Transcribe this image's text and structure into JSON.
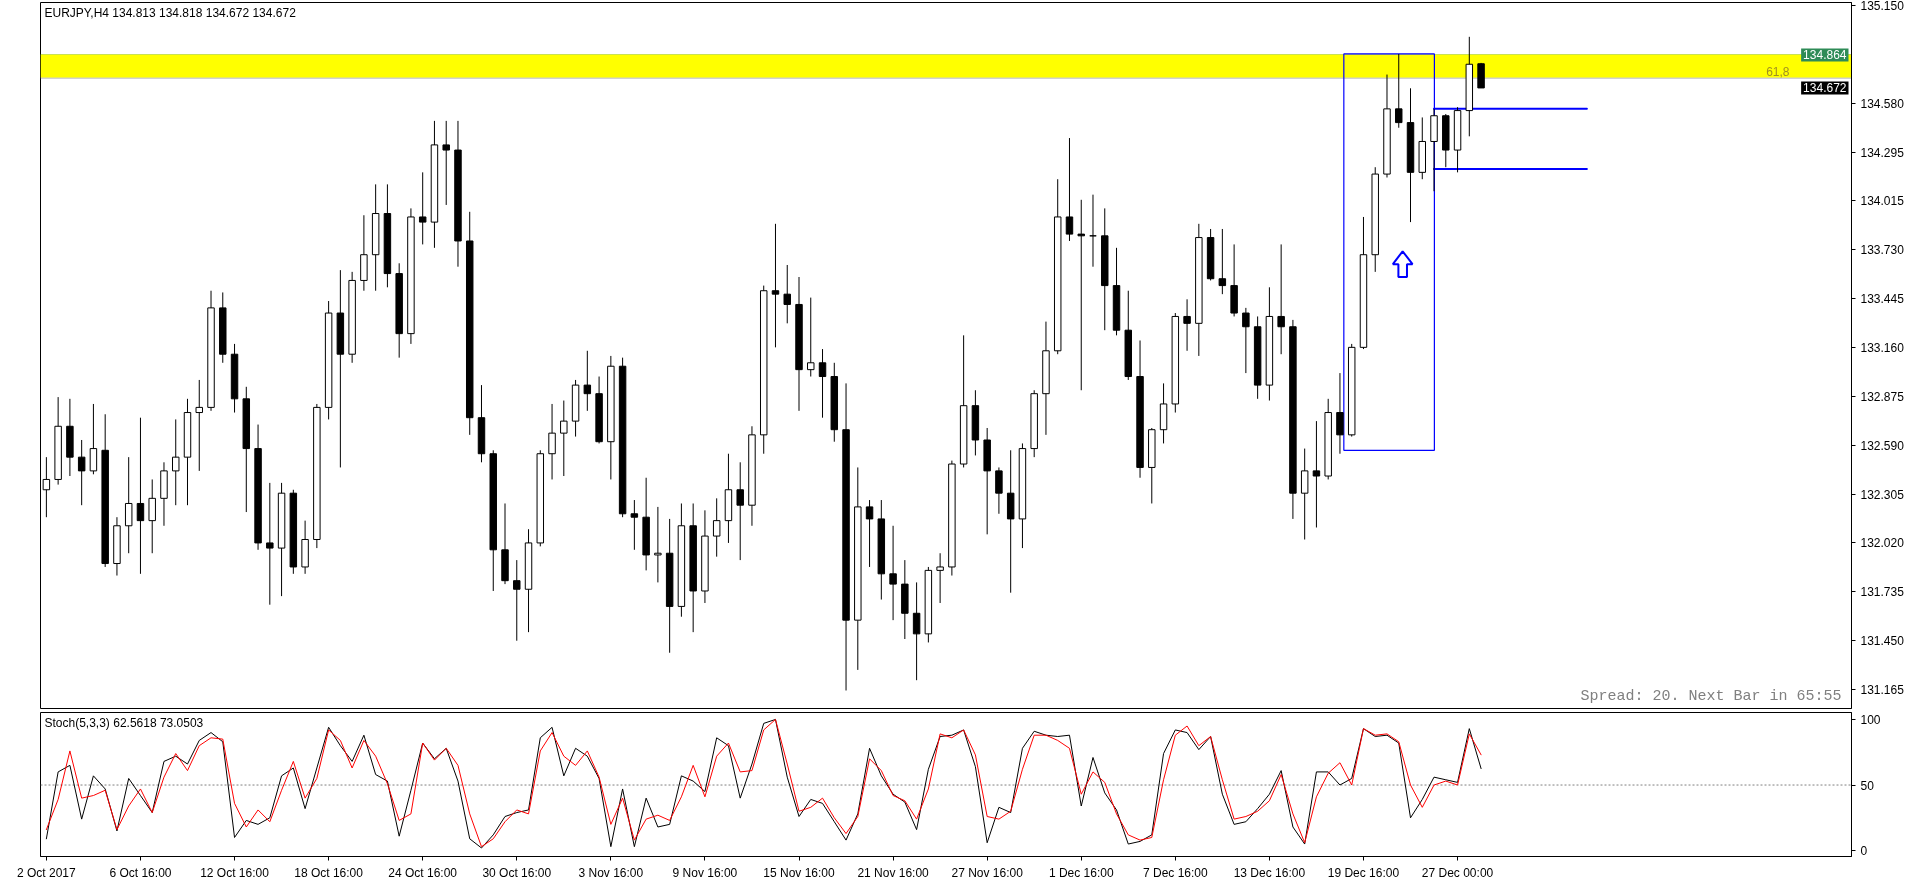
{
  "chart_data": [
    {
      "type": "candlestick",
      "title": "EURJPY,H4 134.813 134.818 134.672 134.672",
      "color": "#000000",
      "categories": [
        null,
        null,
        null,
        null,
        null,
        null,
        null,
        null,
        null,
        null,
        null,
        null,
        null,
        null,
        null,
        null,
        null,
        null,
        null,
        null,
        null,
        null,
        null,
        null,
        null,
        null,
        null,
        null,
        null,
        null,
        null,
        null,
        null,
        null,
        null,
        null,
        null,
        null,
        null,
        null,
        null,
        null,
        null,
        null,
        null,
        null,
        null,
        null,
        null,
        null,
        null,
        null,
        null,
        null,
        null,
        null,
        null,
        null,
        null,
        null,
        null,
        null,
        null,
        null,
        null,
        null,
        null,
        null,
        null,
        null,
        null,
        null,
        null,
        null,
        null,
        null,
        null,
        null,
        null,
        null,
        null,
        null,
        null,
        null,
        null,
        null,
        null,
        null,
        null,
        null,
        null,
        null,
        null,
        null,
        null,
        null,
        null,
        null,
        null,
        null,
        null,
        null,
        null,
        null,
        null,
        null,
        null,
        null,
        null,
        null,
        null,
        null,
        null,
        null,
        null,
        null,
        null,
        null,
        null,
        null,
        null,
        null,
        null,
        null,
        null,
        null,
        null,
        null,
        null,
        null,
        null,
        null,
        null,
        null,
        null,
        null,
        null,
        null,
        null,
        null,
        null,
        null,
        null,
        null,
        null,
        null,
        null,
        null,
        null,
        null,
        null,
        null,
        null,
        null
      ],
      "ohlc": [
        [
          132.33,
          132.52,
          132.17,
          132.39
        ],
        [
          132.39,
          132.87,
          132.36,
          132.7
        ],
        [
          132.7,
          132.86,
          132.41,
          132.52
        ],
        [
          132.52,
          132.62,
          132.24,
          132.44
        ],
        [
          132.44,
          132.83,
          132.42,
          132.57
        ],
        [
          132.56,
          132.77,
          131.88,
          131.9
        ],
        [
          131.9,
          132.17,
          131.83,
          132.12
        ],
        [
          132.12,
          132.52,
          131.96,
          132.25
        ],
        [
          132.25,
          132.75,
          131.84,
          132.15
        ],
        [
          132.15,
          132.39,
          131.96,
          132.28
        ],
        [
          132.28,
          132.49,
          132.12,
          132.44
        ],
        [
          132.44,
          132.74,
          132.24,
          132.52
        ],
        [
          132.52,
          132.86,
          132.24,
          132.78
        ],
        [
          132.78,
          132.97,
          132.44,
          132.81
        ],
        [
          132.81,
          133.49,
          132.79,
          133.39
        ],
        [
          133.39,
          133.48,
          133.07,
          133.12
        ],
        [
          133.12,
          133.18,
          132.78,
          132.86
        ],
        [
          132.86,
          132.93,
          132.2,
          132.57
        ],
        [
          132.57,
          132.71,
          131.98,
          132.02
        ],
        [
          132.02,
          132.37,
          131.66,
          131.99
        ],
        [
          131.99,
          132.37,
          131.71,
          132.31
        ],
        [
          132.31,
          132.33,
          131.84,
          131.88
        ],
        [
          131.88,
          132.15,
          131.84,
          132.04
        ],
        [
          132.04,
          132.83,
          131.99,
          132.81
        ],
        [
          132.81,
          133.43,
          132.74,
          133.36
        ],
        [
          133.36,
          133.61,
          132.46,
          133.12
        ],
        [
          133.12,
          133.6,
          133.07,
          133.55
        ],
        [
          133.55,
          133.93,
          133.49,
          133.7
        ],
        [
          133.7,
          134.11,
          133.49,
          133.94
        ],
        [
          133.94,
          134.11,
          133.51,
          133.59
        ],
        [
          133.59,
          133.65,
          133.1,
          133.24
        ],
        [
          133.24,
          133.97,
          133.18,
          133.92
        ],
        [
          133.92,
          134.18,
          133.76,
          133.89
        ],
        [
          133.89,
          134.48,
          133.74,
          134.34
        ],
        [
          134.34,
          134.48,
          133.99,
          134.31
        ],
        [
          134.31,
          134.48,
          133.63,
          133.78
        ],
        [
          133.78,
          133.95,
          132.65,
          132.75
        ],
        [
          132.75,
          132.94,
          132.49,
          132.54
        ],
        [
          132.54,
          132.56,
          131.74,
          131.98
        ],
        [
          131.98,
          132.25,
          131.78,
          131.8
        ],
        [
          131.8,
          131.92,
          131.45,
          131.75
        ],
        [
          131.75,
          132.1,
          131.5,
          132.02
        ],
        [
          132.02,
          132.56,
          132.0,
          132.54
        ],
        [
          132.54,
          132.83,
          132.39,
          132.66
        ],
        [
          132.66,
          132.85,
          132.41,
          132.73
        ],
        [
          132.73,
          132.97,
          132.64,
          132.94
        ],
        [
          132.94,
          133.14,
          132.79,
          132.89
        ],
        [
          132.89,
          132.99,
          132.6,
          132.61
        ],
        [
          132.61,
          133.11,
          132.39,
          133.05
        ],
        [
          133.05,
          133.1,
          132.17,
          132.19
        ],
        [
          132.19,
          132.27,
          131.98,
          132.17
        ],
        [
          132.17,
          132.4,
          131.86,
          131.95
        ],
        [
          131.95,
          132.23,
          131.79,
          131.96
        ],
        [
          131.96,
          132.16,
          131.38,
          131.65
        ],
        [
          131.65,
          132.25,
          131.59,
          132.12
        ],
        [
          132.12,
          132.25,
          131.5,
          131.74
        ],
        [
          131.74,
          132.21,
          131.67,
          132.06
        ],
        [
          132.06,
          132.28,
          131.94,
          132.15
        ],
        [
          132.15,
          132.54,
          132.02,
          132.33
        ],
        [
          132.33,
          132.49,
          131.92,
          132.24
        ],
        [
          132.24,
          132.7,
          132.12,
          132.65
        ],
        [
          132.65,
          133.52,
          132.54,
          133.49
        ],
        [
          133.49,
          133.88,
          133.16,
          133.47
        ],
        [
          133.47,
          133.64,
          133.3,
          133.41
        ],
        [
          133.41,
          133.57,
          132.79,
          133.03
        ],
        [
          133.03,
          133.45,
          132.99,
          133.07
        ],
        [
          133.07,
          133.15,
          132.75,
          132.99
        ],
        [
          132.99,
          133.07,
          132.61,
          132.68
        ],
        [
          132.68,
          132.95,
          131.16,
          131.57
        ],
        [
          131.57,
          132.46,
          131.28,
          132.23
        ],
        [
          132.23,
          132.27,
          131.88,
          132.16
        ],
        [
          132.16,
          132.27,
          131.69,
          131.84
        ],
        [
          131.84,
          132.12,
          131.57,
          131.78
        ],
        [
          131.78,
          131.92,
          131.46,
          131.61
        ],
        [
          131.61,
          131.79,
          131.22,
          131.49
        ],
        [
          131.49,
          131.88,
          131.44,
          131.86
        ],
        [
          131.86,
          131.96,
          131.67,
          131.88
        ],
        [
          131.88,
          132.5,
          131.83,
          132.48
        ],
        [
          132.48,
          133.23,
          132.46,
          132.82
        ],
        [
          132.82,
          132.91,
          132.53,
          132.62
        ],
        [
          132.62,
          132.69,
          132.07,
          132.44
        ],
        [
          132.44,
          132.46,
          132.19,
          132.31
        ],
        [
          132.31,
          132.56,
          131.73,
          132.16
        ],
        [
          132.16,
          132.6,
          131.99,
          132.57
        ],
        [
          132.57,
          132.91,
          132.52,
          132.89
        ],
        [
          132.89,
          133.31,
          132.65,
          133.14
        ],
        [
          133.14,
          134.14,
          133.12,
          133.92
        ],
        [
          133.92,
          134.38,
          133.78,
          133.82
        ],
        [
          133.82,
          134.02,
          132.91,
          133.81
        ],
        [
          133.81,
          134.05,
          133.63,
          133.81
        ],
        [
          133.81,
          133.97,
          133.26,
          133.52
        ],
        [
          133.52,
          133.74,
          133.23,
          133.26
        ],
        [
          133.26,
          133.49,
          132.97,
          132.99
        ],
        [
          132.99,
          133.2,
          132.4,
          132.46
        ],
        [
          132.46,
          132.69,
          132.25,
          132.68
        ],
        [
          132.68,
          132.95,
          132.6,
          132.83
        ],
        [
          132.83,
          133.36,
          132.78,
          133.34
        ],
        [
          133.34,
          133.44,
          133.14,
          133.3
        ],
        [
          133.3,
          133.88,
          133.11,
          133.8
        ],
        [
          133.8,
          133.85,
          133.55,
          133.56
        ],
        [
          133.56,
          133.85,
          133.47,
          133.52
        ],
        [
          133.52,
          133.76,
          133.34,
          133.36
        ],
        [
          133.36,
          133.39,
          133.01,
          133.28
        ],
        [
          133.28,
          133.34,
          132.86,
          132.94
        ],
        [
          132.94,
          133.51,
          132.85,
          133.34
        ],
        [
          133.34,
          133.76,
          133.12,
          133.28
        ],
        [
          133.28,
          133.32,
          132.16,
          132.31
        ],
        [
          132.31,
          132.57,
          132.04,
          132.44
        ],
        [
          132.44,
          132.73,
          132.11,
          132.41
        ],
        [
          132.41,
          132.86,
          132.39,
          132.78
        ],
        [
          132.78,
          133.01,
          132.54,
          132.65
        ],
        [
          132.65,
          133.18,
          132.64,
          133.16
        ],
        [
          133.16,
          133.92,
          133.15,
          133.7
        ],
        [
          133.7,
          134.21,
          133.6,
          134.17
        ],
        [
          134.17,
          134.75,
          134.15,
          134.55
        ],
        [
          134.55,
          134.87,
          134.44,
          134.47
        ],
        [
          134.47,
          134.67,
          133.89,
          134.18
        ],
        [
          134.18,
          134.5,
          134.14,
          134.36
        ],
        [
          134.36,
          134.55,
          134.07,
          134.51
        ],
        [
          134.51,
          134.52,
          134.21,
          134.31
        ],
        [
          134.31,
          134.56,
          134.18,
          134.54
        ],
        [
          134.54,
          134.97,
          134.39,
          134.81
        ],
        [
          134.813,
          134.818,
          134.672,
          134.672
        ],
        null,
        null,
        null,
        null,
        null,
        null,
        null,
        null,
        null,
        null,
        null,
        null,
        null,
        null,
        null,
        null,
        null,
        null,
        null,
        null,
        null,
        null,
        null,
        null,
        null,
        null,
        null,
        null,
        null,
        null,
        null
      ],
      "series": [
        {
          "type": "line",
          "color": "#0000ff",
          "values": [
            null,
            null,
            null,
            null,
            null,
            null,
            null,
            null,
            null,
            null,
            null,
            null,
            null,
            null,
            null,
            null,
            null,
            null,
            null,
            null,
            null,
            null,
            null,
            null,
            null,
            null,
            null,
            null,
            null,
            null,
            null,
            null,
            null,
            null,
            null,
            null,
            null,
            null,
            null,
            null,
            null,
            null,
            null,
            null,
            null,
            null,
            null,
            null,
            null,
            null,
            null,
            null,
            null,
            null,
            null,
            null,
            null,
            null,
            null,
            null,
            null,
            null,
            null,
            null,
            null,
            null,
            null,
            null,
            null,
            null,
            null,
            null,
            null,
            null,
            null,
            null,
            null,
            null,
            null,
            null,
            null,
            null,
            null,
            null,
            null,
            null,
            null,
            null,
            null,
            null,
            null,
            null,
            null,
            null,
            null,
            null,
            null,
            null,
            null,
            null,
            null,
            null,
            null,
            null,
            null,
            null,
            null,
            null,
            null,
            null,
            null,
            null,
            null,
            null,
            null,
            null,
            null,
            null,
            134.55,
            134.55,
            134.55,
            134.55,
            134.55,
            134.55,
            134.55,
            134.55,
            134.55,
            134.55,
            134.55,
            134.55,
            134.55,
            134.55,
            null,
            null,
            null,
            null,
            null,
            null,
            null,
            null,
            null,
            null,
            null,
            null,
            null,
            null,
            null,
            null,
            null,
            null,
            null,
            null,
            null,
            null
          ]
        },
        {
          "type": "line",
          "color": "#0000ff",
          "values": [
            null,
            null,
            null,
            null,
            null,
            null,
            null,
            null,
            null,
            null,
            null,
            null,
            null,
            null,
            null,
            null,
            null,
            null,
            null,
            null,
            null,
            null,
            null,
            null,
            null,
            null,
            null,
            null,
            null,
            null,
            null,
            null,
            null,
            null,
            null,
            null,
            null,
            null,
            null,
            null,
            null,
            null,
            null,
            null,
            null,
            null,
            null,
            null,
            null,
            null,
            null,
            null,
            null,
            null,
            null,
            null,
            null,
            null,
            null,
            null,
            null,
            null,
            null,
            null,
            null,
            null,
            null,
            null,
            null,
            null,
            null,
            null,
            null,
            null,
            null,
            null,
            null,
            null,
            null,
            null,
            null,
            null,
            null,
            null,
            null,
            null,
            null,
            null,
            null,
            null,
            null,
            null,
            null,
            null,
            null,
            null,
            null,
            null,
            null,
            null,
            null,
            null,
            null,
            null,
            null,
            null,
            null,
            null,
            null,
            null,
            null,
            null,
            null,
            null,
            null,
            null,
            null,
            null,
            134.2,
            134.2,
            134.2,
            134.2,
            134.2,
            134.2,
            134.2,
            134.2,
            134.2,
            134.2,
            134.2,
            134.2,
            134.2,
            134.2,
            null,
            null,
            null,
            null,
            null,
            null,
            null,
            null,
            null,
            null,
            null,
            null,
            null,
            null,
            null,
            null,
            null,
            null,
            null,
            null,
            null,
            null
          ]
        }
      ],
      "ylim": [
        131.055,
        135.17
      ],
      "yticks": [
        131.165,
        {
          "value": 131.45,
          "label": "131.450"
        },
        131.735,
        {
          "value": 132.02,
          "label": "132.020"
        },
        132.305,
        {
          "value": 132.59,
          "label": "132.590"
        },
        132.875,
        {
          "value": 133.16,
          "label": "133.160"
        },
        133.445,
        {
          "value": 133.73,
          "label": "133.730"
        },
        134.015,
        134.295,
        {
          "value": 134.58,
          "label": "134.580"
        },
        {
          "value": 135.15,
          "label": "135.150"
        }
      ],
      "tick_labels": "y",
      "bands": [
        {
          "axis": "y",
          "from": 134.73,
          "to": 134.864,
          "label": "61,8",
          "color": "#ffff00"
        }
      ],
      "ref_lines": [
        {
          "axis": "y",
          "value": 134.864,
          "label": "134.864",
          "color": "#2e8b57"
        },
        {
          "axis": "y",
          "value": 134.73,
          "color": "#a0a0a0"
        }
      ],
      "annotations": [
        "Spread: 20. Next Bar in 65:55",
        "134.672"
      ]
    },
    {
      "type": "line",
      "title": "Stoch(5,3,3) 62.5618 73.0503",
      "categories": [
        "2 Oct 2017",
        null,
        null,
        null,
        null,
        null,
        null,
        null,
        "6 Oct 16:00",
        null,
        null,
        null,
        null,
        null,
        null,
        null,
        "12 Oct 16:00",
        null,
        null,
        null,
        null,
        null,
        null,
        null,
        "18 Oct 16:00",
        null,
        null,
        null,
        null,
        null,
        null,
        null,
        "24 Oct 16:00",
        null,
        null,
        null,
        null,
        null,
        null,
        null,
        "30 Oct 16:00",
        null,
        null,
        null,
        null,
        null,
        null,
        null,
        "3 Nov 16:00",
        null,
        null,
        null,
        null,
        null,
        null,
        null,
        "9 Nov 16:00",
        null,
        null,
        null,
        null,
        null,
        null,
        null,
        "15 Nov 16:00",
        null,
        null,
        null,
        null,
        null,
        null,
        null,
        "21 Nov 16:00",
        null,
        null,
        null,
        null,
        null,
        null,
        null,
        "27 Nov 16:00",
        null,
        null,
        null,
        null,
        null,
        null,
        null,
        "1 Dec 16:00",
        null,
        null,
        null,
        null,
        null,
        null,
        null,
        "7 Dec 16:00",
        null,
        null,
        null,
        null,
        null,
        null,
        null,
        "13 Dec 16:00",
        null,
        null,
        null,
        null,
        null,
        null,
        null,
        "19 Dec 16:00",
        null,
        null,
        null,
        null,
        null,
        null,
        null,
        "27 Dec 00:00",
        null,
        null,
        null,
        null,
        null,
        null,
        null,
        null,
        null,
        null,
        null,
        null,
        null,
        null,
        null,
        null,
        null,
        null,
        null,
        null,
        null,
        null,
        null,
        null,
        null,
        null,
        null,
        null,
        null,
        null,
        null,
        null,
        null
      ],
      "series": [
        {
          "color": "#000000",
          "values": [
            9,
            60,
            65,
            24,
            57,
            47,
            15,
            55,
            42,
            29,
            68,
            72,
            66,
            84,
            90,
            83,
            10,
            23,
            20,
            25,
            57,
            63,
            32,
            63,
            94,
            80,
            68,
            88,
            58,
            53,
            11,
            46,
            82,
            70,
            78,
            53,
            9,
            2,
            12,
            26,
            29,
            31,
            86,
            94,
            57,
            78,
            72,
            55,
            3,
            47,
            3,
            40,
            18,
            20,
            57,
            53,
            45,
            86,
            80,
            40,
            66,
            97,
            100,
            56,
            26,
            39,
            36,
            22,
            8,
            28,
            78,
            57,
            43,
            37,
            16,
            62,
            87,
            88,
            92,
            64,
            6,
            33,
            29,
            78,
            91,
            88,
            87,
            88,
            34,
            71,
            44,
            31,
            5,
            7,
            12,
            74,
            92,
            90,
            77,
            87,
            43,
            20,
            22,
            32,
            43,
            61,
            18,
            5,
            60,
            60,
            50,
            55,
            93,
            87,
            88,
            82,
            25,
            39,
            56,
            54,
            52,
            93,
            62.5618,
            null,
            null,
            null,
            null,
            null,
            null,
            null,
            null,
            null,
            null,
            null,
            null,
            null,
            null,
            null,
            null,
            null,
            null,
            null,
            null,
            null,
            null,
            null,
            null,
            null,
            null,
            null,
            null,
            null,
            null,
            null
          ]
        },
        {
          "color": "#ff0000",
          "values": [
            16,
            39,
            76,
            40,
            42,
            46,
            16,
            34,
            47,
            29,
            56,
            74,
            61,
            80,
            86,
            85,
            36,
            18,
            31,
            22,
            46,
            68,
            40,
            55,
            92,
            84,
            63,
            84,
            72,
            51,
            23,
            28,
            82,
            69,
            78,
            65,
            28,
            3,
            9,
            22,
            31,
            28,
            76,
            90,
            72,
            65,
            76,
            56,
            20,
            40,
            8,
            24,
            27,
            23,
            41,
            65,
            41,
            72,
            82,
            60,
            61,
            92,
            100,
            66,
            30,
            33,
            40,
            25,
            13,
            26,
            70,
            61,
            42,
            38,
            24,
            47,
            89,
            86,
            92,
            73,
            26,
            24,
            30,
            62,
            88,
            88,
            84,
            78,
            43,
            60,
            52,
            28,
            12,
            8,
            10,
            54,
            88,
            95,
            80,
            87,
            54,
            24,
            26,
            30,
            38,
            58,
            28,
            6,
            41,
            59,
            67,
            50,
            93,
            88,
            89,
            83,
            50,
            33,
            50,
            53,
            50,
            89,
            73.0503,
            null,
            null,
            null,
            null,
            null,
            null,
            null,
            null,
            null,
            null,
            null,
            null,
            null,
            null,
            null,
            null,
            null,
            null,
            null,
            null,
            null,
            null,
            null,
            null,
            null,
            null,
            null,
            null,
            null,
            null,
            null
          ]
        }
      ],
      "ylim": [
        -4.5,
        105.3
      ],
      "yticks": [
        0,
        50,
        100
      ],
      "ref_lines": [
        {
          "axis": "y",
          "value": 50,
          "color": "#808080",
          "line_style": "dotted"
        }
      ]
    }
  ]
}
